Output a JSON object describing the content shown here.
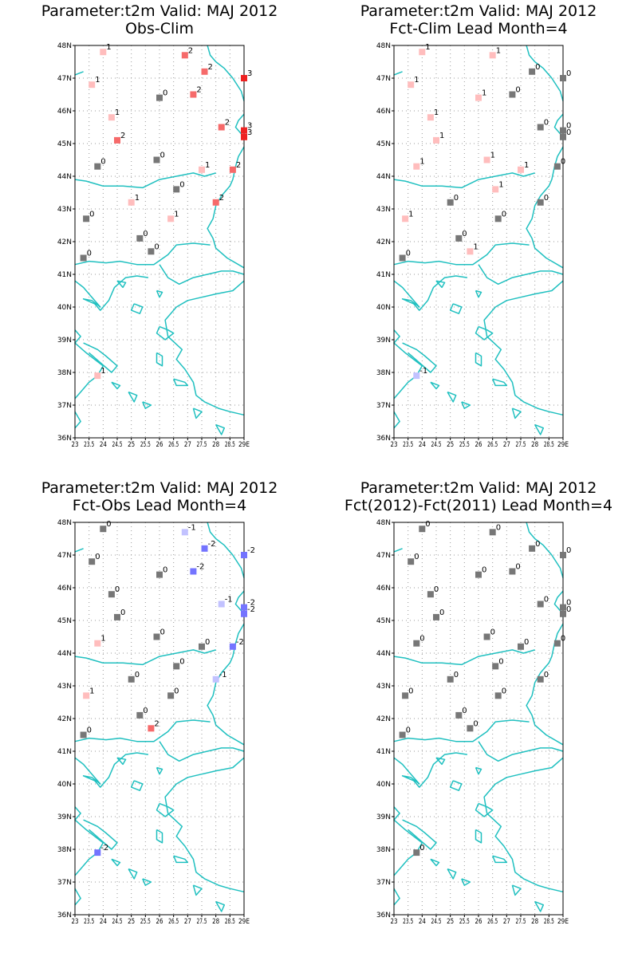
{
  "page": {
    "x_tick_labels": [
      "23",
      "23.5",
      "24",
      "24.5",
      "25",
      "25.5",
      "26",
      "26.5",
      "27",
      "27.5",
      "28",
      "28.5",
      "29E"
    ],
    "y_tick_labels": [
      "48N",
      "47N",
      "46N",
      "45N",
      "44N",
      "43N",
      "42N",
      "41N",
      "40N",
      "39N",
      "38N",
      "37N",
      "36N"
    ],
    "lon_range": [
      23,
      29
    ],
    "lat_range": [
      36,
      48
    ],
    "coastline_color": "#20c0c0",
    "grid": "dotted"
  },
  "chart_data": [
    {
      "type": "scatter",
      "title": "Parameter:t2m Valid: MAJ 2012",
      "subtitle": "Obs-Clim",
      "xlim": [
        23,
        29
      ],
      "ylim": [
        36,
        48
      ],
      "points": [
        {
          "lon": 24.0,
          "lat": 47.8,
          "v": 1
        },
        {
          "lon": 26.9,
          "lat": 47.7,
          "v": 2
        },
        {
          "lon": 27.6,
          "lat": 47.2,
          "v": 2
        },
        {
          "lon": 23.6,
          "lat": 46.8,
          "v": 1
        },
        {
          "lon": 29.0,
          "lat": 47.0,
          "v": 3
        },
        {
          "lon": 27.2,
          "lat": 46.5,
          "v": 2
        },
        {
          "lon": 26.0,
          "lat": 46.4,
          "v": 0
        },
        {
          "lon": 24.3,
          "lat": 45.8,
          "v": 1
        },
        {
          "lon": 28.2,
          "lat": 45.5,
          "v": 2
        },
        {
          "lon": 29.0,
          "lat": 45.4,
          "v": 3
        },
        {
          "lon": 29.0,
          "lat": 45.2,
          "v": 3
        },
        {
          "lon": 24.5,
          "lat": 45.1,
          "v": 2
        },
        {
          "lon": 25.9,
          "lat": 44.5,
          "v": 0
        },
        {
          "lon": 23.8,
          "lat": 44.3,
          "v": 0
        },
        {
          "lon": 27.5,
          "lat": 44.2,
          "v": 1
        },
        {
          "lon": 28.6,
          "lat": 44.2,
          "v": 2
        },
        {
          "lon": 26.6,
          "lat": 43.6,
          "v": 0
        },
        {
          "lon": 25.0,
          "lat": 43.2,
          "v": 1
        },
        {
          "lon": 28.0,
          "lat": 43.2,
          "v": 2
        },
        {
          "lon": 23.4,
          "lat": 42.7,
          "v": 0
        },
        {
          "lon": 26.4,
          "lat": 42.7,
          "v": 1
        },
        {
          "lon": 25.3,
          "lat": 42.1,
          "v": 0
        },
        {
          "lon": 25.7,
          "lat": 41.7,
          "v": 0
        },
        {
          "lon": 23.3,
          "lat": 41.5,
          "v": 0
        },
        {
          "lon": 23.8,
          "lat": 37.9,
          "v": 1
        }
      ]
    },
    {
      "type": "scatter",
      "title": "Parameter:t2m Valid: MAJ 2012",
      "subtitle": "Fct-Clim Lead Month=4",
      "xlim": [
        23,
        29
      ],
      "ylim": [
        36,
        48
      ],
      "points": [
        {
          "lon": 24.0,
          "lat": 47.8,
          "v": 1
        },
        {
          "lon": 26.5,
          "lat": 47.7,
          "v": 1
        },
        {
          "lon": 27.9,
          "lat": 47.2,
          "v": 0
        },
        {
          "lon": 23.6,
          "lat": 46.8,
          "v": 1
        },
        {
          "lon": 29.0,
          "lat": 47.0,
          "v": 0
        },
        {
          "lon": 27.2,
          "lat": 46.5,
          "v": 0
        },
        {
          "lon": 26.0,
          "lat": 46.4,
          "v": 1
        },
        {
          "lon": 24.3,
          "lat": 45.8,
          "v": 1
        },
        {
          "lon": 28.2,
          "lat": 45.5,
          "v": 0
        },
        {
          "lon": 29.0,
          "lat": 45.4,
          "v": 0
        },
        {
          "lon": 29.0,
          "lat": 45.2,
          "v": 0
        },
        {
          "lon": 24.5,
          "lat": 45.1,
          "v": 1
        },
        {
          "lon": 26.3,
          "lat": 44.5,
          "v": 1
        },
        {
          "lon": 23.8,
          "lat": 44.3,
          "v": 1
        },
        {
          "lon": 27.5,
          "lat": 44.2,
          "v": 1
        },
        {
          "lon": 28.8,
          "lat": 44.3,
          "v": 0
        },
        {
          "lon": 26.6,
          "lat": 43.6,
          "v": 1
        },
        {
          "lon": 25.0,
          "lat": 43.2,
          "v": 0
        },
        {
          "lon": 28.2,
          "lat": 43.2,
          "v": 0
        },
        {
          "lon": 23.4,
          "lat": 42.7,
          "v": 1
        },
        {
          "lon": 26.7,
          "lat": 42.7,
          "v": 0
        },
        {
          "lon": 25.3,
          "lat": 42.1,
          "v": 0
        },
        {
          "lon": 25.7,
          "lat": 41.7,
          "v": 1
        },
        {
          "lon": 23.3,
          "lat": 41.5,
          "v": 0
        },
        {
          "lon": 23.8,
          "lat": 37.9,
          "v": -1
        }
      ]
    },
    {
      "type": "scatter",
      "title": "Parameter:t2m Valid: MAJ 2012",
      "subtitle": "Fct-Obs Lead Month=4",
      "xlim": [
        23,
        29
      ],
      "ylim": [
        36,
        48
      ],
      "points": [
        {
          "lon": 24.0,
          "lat": 47.8,
          "v": 0
        },
        {
          "lon": 26.9,
          "lat": 47.7,
          "v": -1
        },
        {
          "lon": 27.6,
          "lat": 47.2,
          "v": -2
        },
        {
          "lon": 23.6,
          "lat": 46.8,
          "v": 0
        },
        {
          "lon": 29.0,
          "lat": 47.0,
          "v": -2
        },
        {
          "lon": 27.2,
          "lat": 46.5,
          "v": -2
        },
        {
          "lon": 26.0,
          "lat": 46.4,
          "v": 0
        },
        {
          "lon": 24.3,
          "lat": 45.8,
          "v": 0
        },
        {
          "lon": 28.2,
          "lat": 45.5,
          "v": -1
        },
        {
          "lon": 29.0,
          "lat": 45.4,
          "v": -2
        },
        {
          "lon": 29.0,
          "lat": 45.2,
          "v": -2
        },
        {
          "lon": 24.5,
          "lat": 45.1,
          "v": 0
        },
        {
          "lon": 25.9,
          "lat": 44.5,
          "v": 0
        },
        {
          "lon": 23.8,
          "lat": 44.3,
          "v": 1
        },
        {
          "lon": 27.5,
          "lat": 44.2,
          "v": 0
        },
        {
          "lon": 28.6,
          "lat": 44.2,
          "v": -2
        },
        {
          "lon": 26.6,
          "lat": 43.6,
          "v": 0
        },
        {
          "lon": 25.0,
          "lat": 43.2,
          "v": 0
        },
        {
          "lon": 28.0,
          "lat": 43.2,
          "v": -1
        },
        {
          "lon": 23.4,
          "lat": 42.7,
          "v": 1
        },
        {
          "lon": 26.4,
          "lat": 42.7,
          "v": 0
        },
        {
          "lon": 25.3,
          "lat": 42.1,
          "v": 0
        },
        {
          "lon": 25.7,
          "lat": 41.7,
          "v": 2
        },
        {
          "lon": 23.3,
          "lat": 41.5,
          "v": 0
        },
        {
          "lon": 23.8,
          "lat": 37.9,
          "v": -2
        }
      ]
    },
    {
      "type": "scatter",
      "title": "Parameter:t2m Valid: MAJ 2012",
      "subtitle": "Fct(2012)-Fct(2011) Lead Month=4",
      "xlim": [
        23,
        29
      ],
      "ylim": [
        36,
        48
      ],
      "points": [
        {
          "lon": 24.0,
          "lat": 47.8,
          "v": 0
        },
        {
          "lon": 26.5,
          "lat": 47.7,
          "v": 0
        },
        {
          "lon": 27.9,
          "lat": 47.2,
          "v": 0
        },
        {
          "lon": 23.6,
          "lat": 46.8,
          "v": 0
        },
        {
          "lon": 29.0,
          "lat": 47.0,
          "v": 0
        },
        {
          "lon": 27.2,
          "lat": 46.5,
          "v": 0
        },
        {
          "lon": 26.0,
          "lat": 46.4,
          "v": 0
        },
        {
          "lon": 24.3,
          "lat": 45.8,
          "v": 0
        },
        {
          "lon": 28.2,
          "lat": 45.5,
          "v": 0
        },
        {
          "lon": 29.0,
          "lat": 45.4,
          "v": 0
        },
        {
          "lon": 29.0,
          "lat": 45.2,
          "v": 0
        },
        {
          "lon": 24.5,
          "lat": 45.1,
          "v": 0
        },
        {
          "lon": 26.3,
          "lat": 44.5,
          "v": 0
        },
        {
          "lon": 23.8,
          "lat": 44.3,
          "v": 0
        },
        {
          "lon": 27.5,
          "lat": 44.2,
          "v": 0
        },
        {
          "lon": 28.8,
          "lat": 44.3,
          "v": 0
        },
        {
          "lon": 26.6,
          "lat": 43.6,
          "v": 0
        },
        {
          "lon": 25.0,
          "lat": 43.2,
          "v": 0
        },
        {
          "lon": 28.2,
          "lat": 43.2,
          "v": 0
        },
        {
          "lon": 23.4,
          "lat": 42.7,
          "v": 0
        },
        {
          "lon": 26.7,
          "lat": 42.7,
          "v": 0
        },
        {
          "lon": 25.3,
          "lat": 42.1,
          "v": 0
        },
        {
          "lon": 25.7,
          "lat": 41.7,
          "v": 0
        },
        {
          "lon": 23.3,
          "lat": 41.5,
          "v": 0
        },
        {
          "lon": 23.8,
          "lat": 37.9,
          "v": 0
        }
      ]
    }
  ]
}
